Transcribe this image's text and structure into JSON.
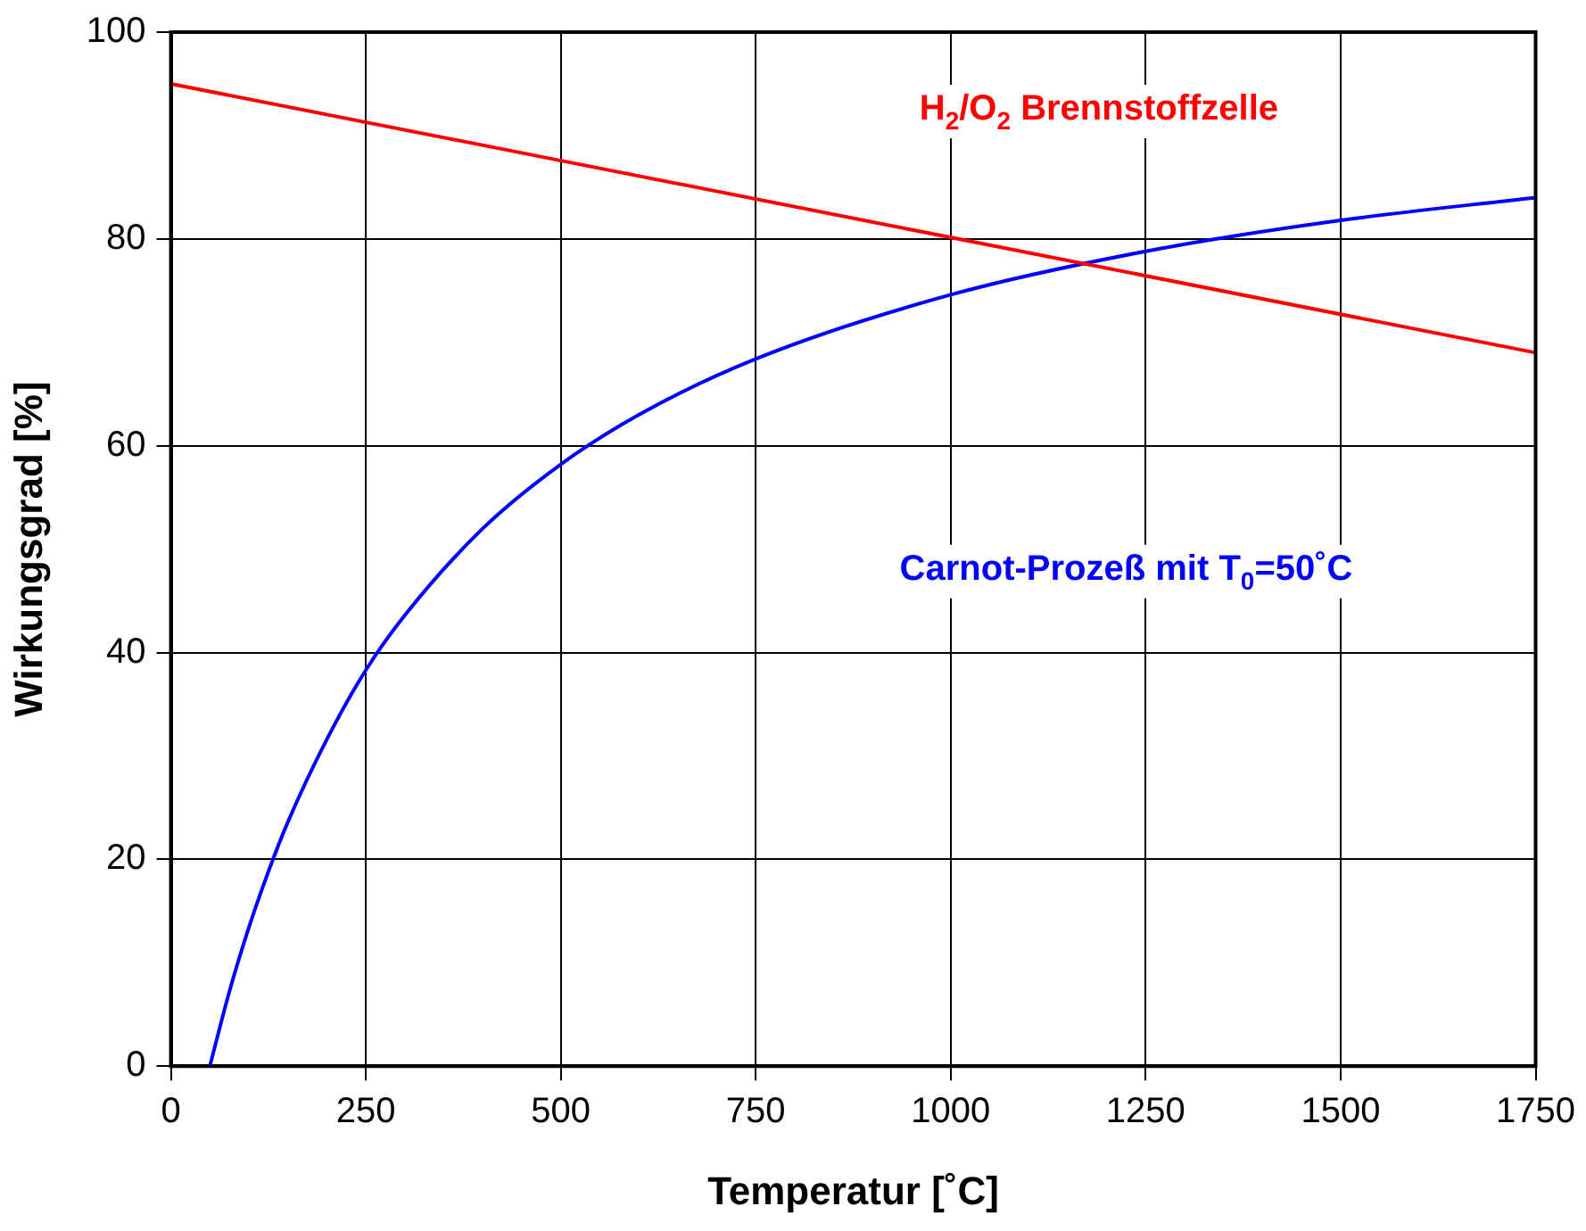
{
  "chart_data": {
    "type": "line",
    "xlabel": "Temperatur [˚C]",
    "ylabel": "Wirkungsgrad [%]",
    "xlim": [
      0,
      1750
    ],
    "xticks": [
      0,
      250,
      500,
      750,
      1000,
      1250,
      1500,
      1750
    ],
    "ylim": [
      0,
      100
    ],
    "yticks": [
      0,
      20,
      40,
      60,
      80,
      100
    ],
    "grid": true,
    "legend": false,
    "marker": "none",
    "line_style": "solid",
    "series": [
      {
        "name": "H$_{2}$/O$_{2}$ Brennstoffzelle",
        "color": "#ff0000",
        "x": [
          0,
          1750
        ],
        "values": [
          95,
          69
        ]
      },
      {
        "name": "Carnot-Prozeß mit T$_{0}$=50˚C",
        "color": "#0000ff",
        "x": [
          50,
          75,
          100,
          125,
          150,
          200,
          250,
          300,
          400,
          500,
          600,
          750,
          1000,
          1250,
          1500,
          1750
        ],
        "values": [
          0,
          7.2,
          13.4,
          18.8,
          23.6,
          31.6,
          38.3,
          43.6,
          52.0,
          58.2,
          63.0,
          68.4,
          74.6,
          78.8,
          81.8,
          84.0
        ]
      }
    ]
  }
}
